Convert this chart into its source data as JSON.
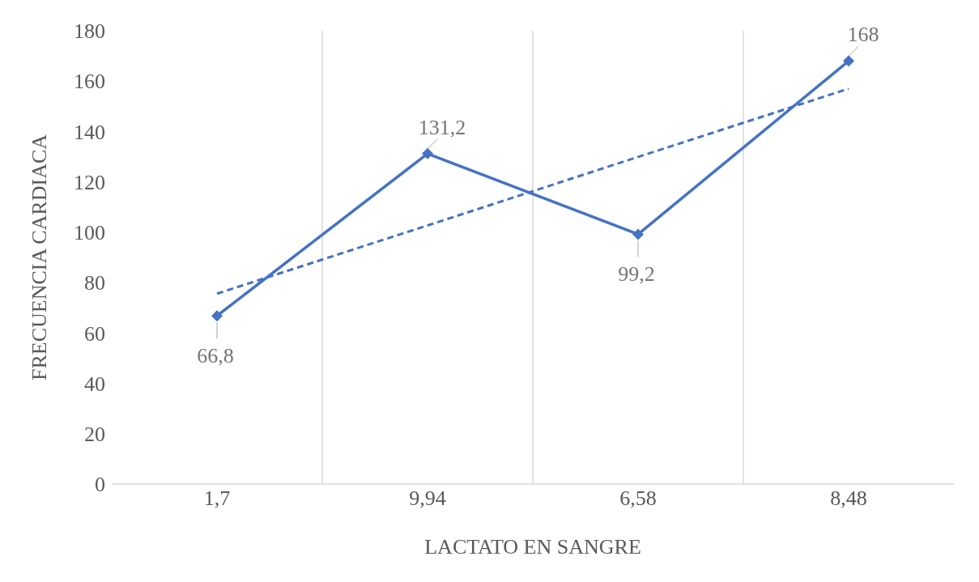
{
  "chart_data": {
    "type": "line",
    "xlabel": "LACTATO EN SANGRE",
    "ylabel": "FRECUENCIA CARDIACA",
    "categories": [
      "1,7",
      "9,94",
      "6,58",
      "8,48"
    ],
    "series": [
      {
        "color": "#4472c4",
        "values": [
          66.8,
          131.2,
          99.2,
          168
        ],
        "marker": "diamond",
        "line_style": "solid",
        "value_labels": [
          "66,8",
          "131,2",
          "99,2",
          "168"
        ]
      },
      {
        "type": "line",
        "x": [
          "1,7",
          "9,94",
          "6,58",
          "8,48"
        ],
        "color": "#4472c4",
        "values": [
          75.6,
          102.7,
          129.9,
          157.0
        ],
        "marker": "none",
        "line_style": "dashed"
      }
    ],
    "ylim": [
      0,
      180
    ],
    "yticks": [
      0,
      20,
      40,
      60,
      80,
      100,
      120,
      140,
      160,
      180
    ],
    "grid": "x"
  }
}
